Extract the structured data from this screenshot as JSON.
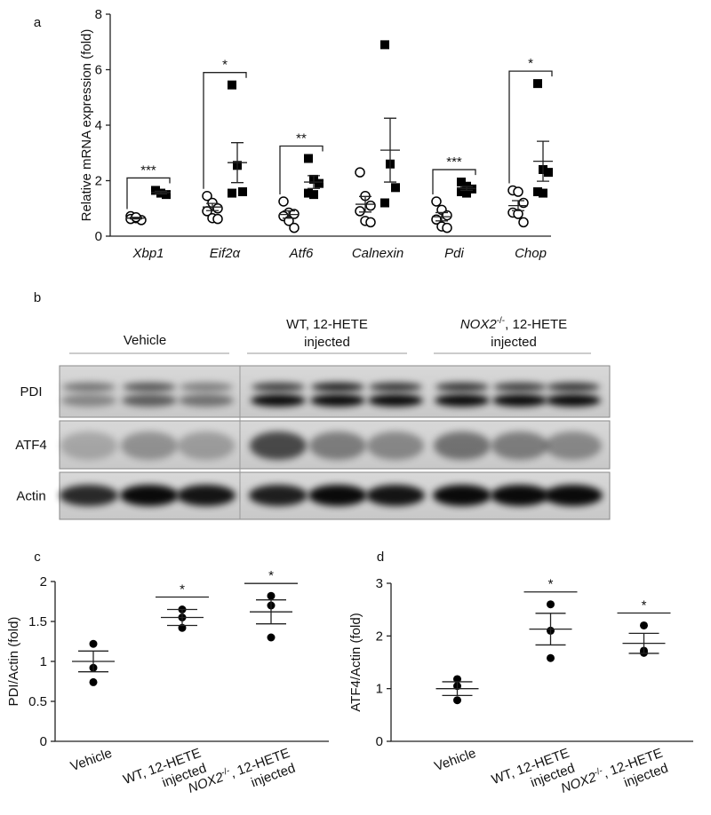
{
  "chart_data": [
    {
      "panel": "a",
      "type": "dotplot",
      "y_label": "Relative mRNA expression (fold)",
      "categories": [
        "Xbp1",
        "Eif2α",
        "Atf6",
        "Calnexin",
        "Pdi",
        "Chop"
      ],
      "category_style": "italic",
      "ylim": [
        0,
        8
      ],
      "yticks": [
        0,
        2,
        4,
        6,
        8
      ],
      "series": [
        {
          "marker": "open-circle",
          "color": "#000000",
          "values": [
            [
              0.72,
              0.65,
              0.58,
              0.62,
              0.68
            ],
            [
              1.45,
              1.2,
              1.0,
              0.9,
              0.65,
              0.62
            ],
            [
              1.25,
              0.85,
              0.8,
              0.72,
              0.55,
              0.3
            ],
            [
              2.3,
              1.45,
              1.1,
              0.9,
              0.55,
              0.5
            ],
            [
              1.25,
              0.95,
              0.75,
              0.6,
              0.35,
              0.3
            ],
            [
              1.65,
              1.6,
              1.2,
              0.85,
              0.8,
              0.5
            ]
          ],
          "mean": [
            0.65,
            1.05,
            0.78,
            1.15,
            0.7,
            1.1
          ],
          "sem": [
            0.03,
            0.13,
            0.13,
            0.28,
            0.15,
            0.18
          ]
        },
        {
          "marker": "square",
          "color": "#000000",
          "values": [
            [
              1.65,
              1.55,
              1.5
            ],
            [
              5.45,
              2.55,
              1.6,
              1.55
            ],
            [
              2.8,
              2.05,
              1.9,
              1.55,
              1.5
            ],
            [
              6.9,
              2.6,
              1.75,
              1.2
            ],
            [
              1.95,
              1.8,
              1.7,
              1.6,
              1.55
            ],
            [
              5.5,
              2.4,
              2.3,
              1.6,
              1.55
            ]
          ],
          "mean": [
            1.57,
            2.65,
            1.95,
            3.1,
            1.72,
            2.7
          ],
          "sem": [
            0.05,
            0.72,
            0.23,
            1.15,
            0.07,
            0.72
          ]
        }
      ],
      "significance": [
        "***",
        "*",
        "**",
        null,
        "***",
        "*"
      ]
    },
    {
      "panel": "c",
      "type": "dotplot",
      "y_label": "PDI/Actin (fold)",
      "categories": [
        "Vehicle",
        [
          "WT, 12-HETE",
          "injected"
        ],
        [
          [
            "NOX2",
            "-/-",
            ", 12-HETE"
          ],
          "injected"
        ]
      ],
      "ylim": [
        0,
        2
      ],
      "yticks": [
        0,
        0.5,
        1,
        1.5,
        2
      ],
      "series": [
        {
          "marker": "dot",
          "color": "#000000",
          "values": [
            [
              1.22,
              0.92,
              0.74
            ],
            [
              1.65,
              1.55,
              1.42
            ],
            [
              1.82,
              1.7,
              1.3
            ]
          ],
          "mean": [
            1.0,
            1.55,
            1.62
          ],
          "sem": [
            0.13,
            0.1,
            0.15
          ]
        }
      ],
      "significance": [
        null,
        "*",
        "*"
      ]
    },
    {
      "panel": "d",
      "type": "dotplot",
      "y_label": "ATF4/Actin (fold)",
      "categories": [
        "Vehicle",
        [
          "WT, 12-HETE",
          "injected"
        ],
        [
          [
            "NOX2",
            "-/-",
            ", 12-HETE"
          ],
          "injected"
        ]
      ],
      "ylim": [
        0,
        3
      ],
      "yticks": [
        0,
        1,
        2,
        3
      ],
      "series": [
        {
          "marker": "dot",
          "color": "#000000",
          "values": [
            [
              1.18,
              1.05,
              0.78
            ],
            [
              2.6,
              2.1,
              1.58
            ],
            [
              2.2,
              1.72,
              1.68
            ]
          ],
          "mean": [
            1.0,
            2.13,
            1.86
          ],
          "sem": [
            0.13,
            0.3,
            0.19
          ]
        }
      ],
      "significance": [
        null,
        "*",
        "*"
      ]
    }
  ],
  "blot": {
    "panel": "b",
    "groups": [
      {
        "label": [
          "Vehicle"
        ]
      },
      {
        "label": [
          "WT, 12-HETE",
          "injected"
        ]
      },
      {
        "label": [
          [
            "NOX2",
            "-/-",
            ", 12-HETE"
          ],
          "injected"
        ]
      }
    ],
    "rows": [
      "PDI",
      "ATF4",
      "Actin"
    ]
  }
}
